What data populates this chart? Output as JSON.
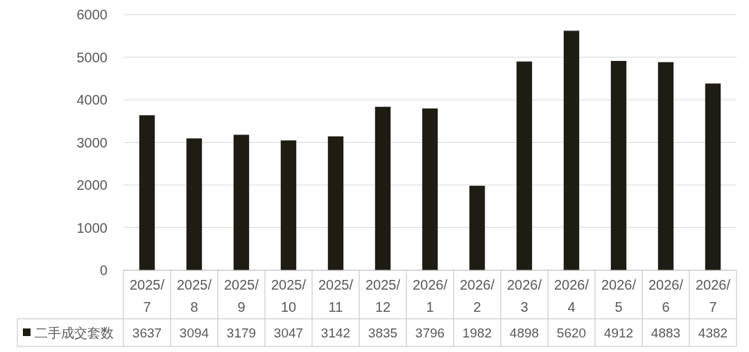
{
  "chart_data": {
    "type": "bar",
    "categories": [
      "2025/7",
      "2025/8",
      "2025/9",
      "2025/10",
      "2025/11",
      "2025/12",
      "2026/1",
      "2026/2",
      "2026/3",
      "2026/4",
      "2026/5",
      "2026/6",
      "2026/7"
    ],
    "series": [
      {
        "name": "二手成交套数",
        "color": "#1f1c14",
        "values": [
          3637,
          3094,
          3179,
          3047,
          3142,
          3835,
          3796,
          1982,
          4898,
          5620,
          4912,
          4883,
          4382
        ]
      }
    ],
    "ylim": [
      0,
      6000
    ],
    "yticks": [
      0,
      1000,
      2000,
      3000,
      4000,
      5000,
      6000
    ],
    "grid": "y",
    "data_labels": true,
    "legend": "bottom"
  }
}
